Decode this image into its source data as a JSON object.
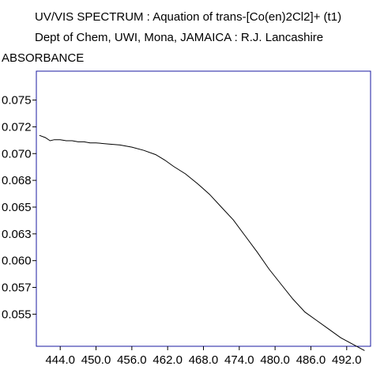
{
  "chart_data": {
    "type": "line",
    "title": "UV/VIS SPECTRUM : Aquation of trans-[Co(en)2Cl2]+ (t1)",
    "subtitle": "Dept of Chem, UWI, Mona, JAMAICA : R.J. Lancashire",
    "ylabel": "ABSORBANCE",
    "xlabel": "",
    "xlim": [
      440.0,
      496.0
    ],
    "ylim": [
      0.052,
      0.0777
    ],
    "x_ticks": [
      444.0,
      450.0,
      456.0,
      462.0,
      468.0,
      474.0,
      480.0,
      486.0,
      492.0
    ],
    "x_tick_labels": [
      "444.0",
      "450.0",
      "456.0",
      "462.0",
      "468.0",
      "474.0",
      "480.0",
      "486.0",
      "492.0"
    ],
    "y_ticks": [
      0.055,
      0.0575,
      0.06,
      0.0625,
      0.065,
      0.0675,
      0.07,
      0.0725,
      0.075
    ],
    "y_tick_labels": [
      "0.055",
      "0.057",
      "0.060",
      "0.063",
      "0.065",
      "0.068",
      "0.070",
      "0.072",
      "0.075"
    ],
    "grid": false,
    "line_color": "#000000",
    "frame_color": "#1a1aa0",
    "series": [
      {
        "x": [
          440.5,
          441.5,
          442.3,
          443.0,
          444.0,
          445.0,
          446.0,
          447.0,
          448.0,
          449.0,
          450.0,
          452.0,
          454.0,
          456.0,
          458.0,
          460.0,
          461.5,
          463.0,
          465.0,
          467.0,
          469.0,
          471.0,
          473.0,
          475.0,
          477.0,
          479.0,
          481.0,
          483.0,
          485.0,
          487.0,
          489.0,
          491.0,
          493.0,
          495.0
        ],
        "y": [
          0.0717,
          0.0715,
          0.0712,
          0.0713,
          0.0713,
          0.0712,
          0.0712,
          0.0711,
          0.0711,
          0.071,
          0.071,
          0.0709,
          0.0708,
          0.0706,
          0.0703,
          0.0699,
          0.0694,
          0.0688,
          0.0681,
          0.0672,
          0.0662,
          0.065,
          0.0638,
          0.0623,
          0.0608,
          0.0592,
          0.0578,
          0.0564,
          0.0552,
          0.0544,
          0.0536,
          0.0528,
          0.0522,
          0.0516
        ]
      }
    ]
  }
}
